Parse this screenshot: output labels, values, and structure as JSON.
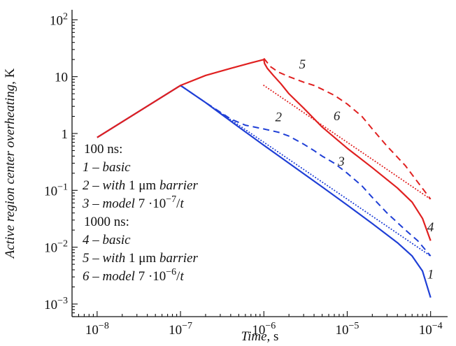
{
  "chart_data": {
    "type": "line",
    "x_scale": "log",
    "y_scale": "log",
    "xlim": [
      5e-09,
      0.00016
    ],
    "ylim": [
      0.0006,
      150
    ],
    "xlabel": {
      "italic": "Time",
      "normal": ", s"
    },
    "ylabel": {
      "italic": "Active region center overheating",
      "normal": ", K"
    },
    "x_ticks": [
      {
        "value": 1e-08,
        "base": "10",
        "exp": "−8"
      },
      {
        "value": 1e-07,
        "base": "10",
        "exp": "−7"
      },
      {
        "value": 1e-06,
        "base": "10",
        "exp": "−6"
      },
      {
        "value": 1e-05,
        "base": "10",
        "exp": "−5"
      },
      {
        "value": 0.0001,
        "base": "10",
        "exp": "−4"
      }
    ],
    "y_ticks": [
      {
        "value": 0.001,
        "base": "10",
        "exp": "−3"
      },
      {
        "value": 0.01,
        "base": "10",
        "exp": "−2"
      },
      {
        "value": 0.1,
        "base": "10",
        "exp": "−1"
      },
      {
        "value": 1,
        "base": "1",
        "exp": ""
      },
      {
        "value": 10,
        "base": "10",
        "exp": ""
      },
      {
        "value": 100,
        "base": "10",
        "exp": "2"
      }
    ],
    "legend": {
      "placement": "left-center",
      "groups": [
        {
          "header": "100 ns:",
          "items": [
            {
              "parts": [
                [
                  "1",
                  true
                ],
                [
                  " – ",
                  false
                ],
                [
                  "basic",
                  true
                ]
              ]
            },
            {
              "parts": [
                [
                  "2",
                  true
                ],
                [
                  " – ",
                  false
                ],
                [
                  "with",
                  true
                ],
                [
                  " 1 μm ",
                  false
                ],
                [
                  "barrier",
                  true
                ]
              ]
            },
            {
              "parts": [
                [
                  "3",
                  true
                ],
                [
                  " – ",
                  false
                ],
                [
                  "model",
                  true
                ],
                [
                  " 7 ·10",
                  false
                ],
                [
                  "−7",
                  false,
                  "sup"
                ],
                [
                  "/",
                  false
                ],
                [
                  "t",
                  true
                ]
              ]
            }
          ]
        },
        {
          "header": "1000 ns:",
          "items": [
            {
              "parts": [
                [
                  "4",
                  true
                ],
                [
                  " – ",
                  false
                ],
                [
                  "basic",
                  true
                ]
              ]
            },
            {
              "parts": [
                [
                  "5",
                  true
                ],
                [
                  " – ",
                  false
                ],
                [
                  "with",
                  true
                ],
                [
                  " 1 μm ",
                  false
                ],
                [
                  "barrier",
                  true
                ]
              ]
            },
            {
              "parts": [
                [
                  "6",
                  true
                ],
                [
                  " – ",
                  false
                ],
                [
                  "model",
                  true
                ],
                [
                  " 7 ·10",
                  false
                ],
                [
                  "−6",
                  false,
                  "sup"
                ],
                [
                  "/",
                  false
                ],
                [
                  "t",
                  true
                ]
              ]
            }
          ]
        }
      ]
    },
    "series": [
      {
        "label": "1",
        "color": "#1f3fd6",
        "style": "solid",
        "x": [
          1e-08,
          1e-07,
          2e-07,
          5e-07,
          1e-06,
          2e-06,
          5e-06,
          1e-05,
          2e-05,
          4e-05,
          6e-05,
          8e-05,
          0.0001
        ],
        "y": [
          0.85,
          7.0,
          3.5,
          1.3,
          0.62,
          0.3,
          0.115,
          0.055,
          0.026,
          0.012,
          0.007,
          0.0038,
          0.0013
        ]
      },
      {
        "label": "2",
        "color": "#1f3fd6",
        "style": "dashed",
        "x": [
          1e-07,
          2e-07,
          4e-07,
          6e-07,
          1e-06,
          1.5e-06,
          2e-06,
          3e-06,
          4e-06,
          5e-06,
          7e-06,
          1e-05,
          1.5e-05,
          2e-05,
          3e-05,
          5e-05,
          7e-05,
          0.0001
        ],
        "y": [
          7.0,
          3.5,
          1.8,
          1.4,
          1.2,
          1.05,
          0.9,
          0.65,
          0.5,
          0.4,
          0.3,
          0.2,
          0.12,
          0.075,
          0.04,
          0.02,
          0.013,
          0.007
        ]
      },
      {
        "label": "3",
        "color": "#1f3fd6",
        "style": "dotted",
        "x": [
          1e-07,
          0.0001
        ],
        "y": [
          7.0,
          0.007
        ]
      },
      {
        "label": "4",
        "color": "#e02020",
        "style": "solid",
        "x": [
          1e-08,
          1e-07,
          2e-07,
          4e-07,
          7e-07,
          1e-06,
          1.02e-06,
          1.1e-06,
          1.3e-06,
          1.6e-06,
          2e-06,
          3e-06,
          5e-06,
          1e-05,
          2e-05,
          4e-05,
          6e-05,
          8e-05,
          0.0001
        ],
        "y": [
          0.85,
          7.0,
          10.5,
          14.0,
          17.5,
          20.0,
          17.0,
          14.0,
          10.5,
          7.5,
          5.0,
          2.8,
          1.3,
          0.55,
          0.25,
          0.11,
          0.062,
          0.032,
          0.013
        ]
      },
      {
        "label": "5",
        "color": "#e02020",
        "style": "dashed",
        "x": [
          1e-06,
          1.2e-06,
          1.5e-06,
          2e-06,
          3e-06,
          4e-06,
          5e-06,
          7e-06,
          1e-05,
          1.5e-05,
          2e-05,
          3e-05,
          5e-05,
          7e-05,
          0.0001
        ],
        "y": [
          21.0,
          15.0,
          12.0,
          10.0,
          8.0,
          7.0,
          6.0,
          4.7,
          3.3,
          2.0,
          1.2,
          0.6,
          0.27,
          0.14,
          0.07
        ]
      },
      {
        "label": "6",
        "color": "#e02020",
        "style": "dotted",
        "x": [
          1e-06,
          0.0001
        ],
        "y": [
          7.0,
          0.07
        ]
      }
    ],
    "curve_labels": [
      {
        "text": "1",
        "x": 0.0001,
        "y": 0.0028
      },
      {
        "text": "2",
        "x": 1.5e-06,
        "y": 1.65
      },
      {
        "text": "3",
        "x": 8.5e-06,
        "y": 0.27
      },
      {
        "text": "4",
        "x": 0.0001,
        "y": 0.019
      },
      {
        "text": "5",
        "x": 2.9e-06,
        "y": 14.0
      },
      {
        "text": "6",
        "x": 7.5e-06,
        "y": 1.7
      }
    ]
  }
}
